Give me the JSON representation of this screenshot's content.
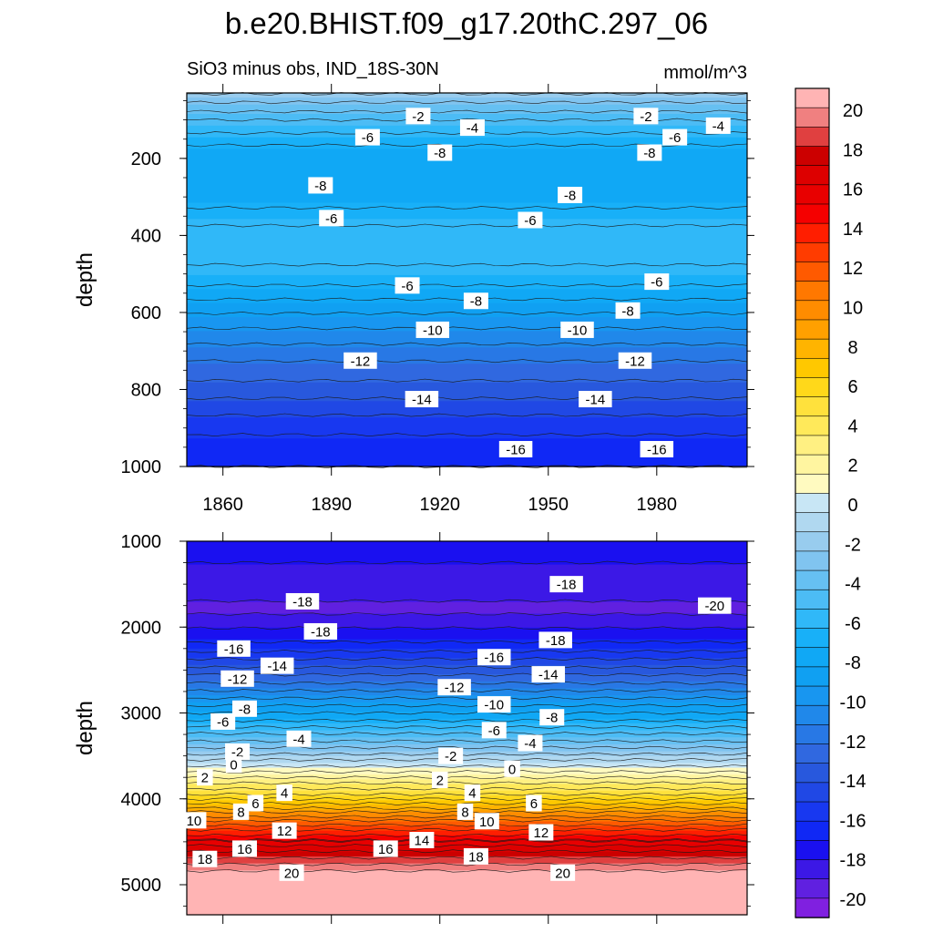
{
  "title": "b.e20.BHIST.f09_g17.20thC.297_06",
  "chart_data": [
    {
      "type": "heatmap",
      "panel": "upper",
      "subtitle_left": "SiO3 minus obs, IND_18S-30N",
      "subtitle_right": "mmol/m^3",
      "ylabel": "depth",
      "xlim": [
        1850,
        2005
      ],
      "ylim": [
        1000,
        30
      ],
      "x_ticks": [
        1860,
        1890,
        1920,
        1950,
        1980
      ],
      "y_ticks": [
        200,
        400,
        600,
        800,
        1000
      ],
      "depth_profile": [
        {
          "depth": 30,
          "value": -2.0
        },
        {
          "depth": 100,
          "value": -5.0
        },
        {
          "depth": 180,
          "value": -7.5
        },
        {
          "depth": 300,
          "value": -7.6
        },
        {
          "depth": 400,
          "value": -5.4
        },
        {
          "depth": 500,
          "value": -6.2
        },
        {
          "depth": 600,
          "value": -9.0
        },
        {
          "depth": 700,
          "value": -11.5
        },
        {
          "depth": 800,
          "value": -13.5
        },
        {
          "depth": 900,
          "value": -15.8
        },
        {
          "depth": 1000,
          "value": -17.0
        }
      ],
      "contour_labels": [
        {
          "x": 1914,
          "depth": 90,
          "text": "-2"
        },
        {
          "x": 1929,
          "depth": 120,
          "text": "-4"
        },
        {
          "x": 1900,
          "depth": 145,
          "text": "-6"
        },
        {
          "x": 1920,
          "depth": 185,
          "text": "-8"
        },
        {
          "x": 1977,
          "depth": 90,
          "text": "-2"
        },
        {
          "x": 1997,
          "depth": 115,
          "text": "-4"
        },
        {
          "x": 1985,
          "depth": 145,
          "text": "-6"
        },
        {
          "x": 1978,
          "depth": 185,
          "text": "-8"
        },
        {
          "x": 1887,
          "depth": 270,
          "text": "-8"
        },
        {
          "x": 1956,
          "depth": 295,
          "text": "-8"
        },
        {
          "x": 1890,
          "depth": 355,
          "text": "-6"
        },
        {
          "x": 1945,
          "depth": 360,
          "text": "-6"
        },
        {
          "x": 1911,
          "depth": 530,
          "text": "-6"
        },
        {
          "x": 1980,
          "depth": 520,
          "text": "-6"
        },
        {
          "x": 1930,
          "depth": 570,
          "text": "-8"
        },
        {
          "x": 1972,
          "depth": 595,
          "text": "-8"
        },
        {
          "x": 1918,
          "depth": 645,
          "text": "-10"
        },
        {
          "x": 1958,
          "depth": 645,
          "text": "-10"
        },
        {
          "x": 1898,
          "depth": 725,
          "text": "-12"
        },
        {
          "x": 1974,
          "depth": 725,
          "text": "-12"
        },
        {
          "x": 1915,
          "depth": 825,
          "text": "-14"
        },
        {
          "x": 1963,
          "depth": 825,
          "text": "-14"
        },
        {
          "x": 1941,
          "depth": 955,
          "text": "-16"
        },
        {
          "x": 1980,
          "depth": 955,
          "text": "-16"
        }
      ]
    },
    {
      "type": "heatmap",
      "panel": "lower",
      "ylabel": "depth",
      "xlim": [
        1850,
        2005
      ],
      "ylim": [
        5350,
        1000
      ],
      "y_ticks": [
        1000,
        2000,
        3000,
        4000,
        5000
      ],
      "depth_profile": [
        {
          "depth": 1000,
          "value": -17.5
        },
        {
          "depth": 1500,
          "value": -18.5
        },
        {
          "depth": 1800,
          "value": -19.3
        },
        {
          "depth": 2200,
          "value": -16.8
        },
        {
          "depth": 2600,
          "value": -12.5
        },
        {
          "depth": 3000,
          "value": -8.0
        },
        {
          "depth": 3400,
          "value": -3.0
        },
        {
          "depth": 3650,
          "value": 0.5
        },
        {
          "depth": 4000,
          "value": 6.0
        },
        {
          "depth": 4300,
          "value": 12.0
        },
        {
          "depth": 4600,
          "value": 17.0
        },
        {
          "depth": 4850,
          "value": 20.2
        },
        {
          "depth": 5350,
          "value": 20.5
        }
      ],
      "contour_labels": [
        {
          "x": 1955,
          "depth": 1500,
          "text": "-18"
        },
        {
          "x": 1996,
          "depth": 1750,
          "text": "-20"
        },
        {
          "x": 1882,
          "depth": 1700,
          "text": "-18"
        },
        {
          "x": 1887,
          "depth": 2050,
          "text": "-18"
        },
        {
          "x": 1952,
          "depth": 2150,
          "text": "-18"
        },
        {
          "x": 1863,
          "depth": 2250,
          "text": "-16"
        },
        {
          "x": 1935,
          "depth": 2350,
          "text": "-16"
        },
        {
          "x": 1875,
          "depth": 2450,
          "text": "-14"
        },
        {
          "x": 1950,
          "depth": 2550,
          "text": "-14"
        },
        {
          "x": 1864,
          "depth": 2600,
          "text": "-12"
        },
        {
          "x": 1924,
          "depth": 2700,
          "text": "-12"
        },
        {
          "x": 1866,
          "depth": 2950,
          "text": "-8"
        },
        {
          "x": 1935,
          "depth": 2900,
          "text": "-10"
        },
        {
          "x": 1951,
          "depth": 3050,
          "text": "-8"
        },
        {
          "x": 1860,
          "depth": 3100,
          "text": "-6"
        },
        {
          "x": 1935,
          "depth": 3200,
          "text": "-6"
        },
        {
          "x": 1881,
          "depth": 3300,
          "text": "-4"
        },
        {
          "x": 1945,
          "depth": 3350,
          "text": "-4"
        },
        {
          "x": 1864,
          "depth": 3450,
          "text": "-2"
        },
        {
          "x": 1923,
          "depth": 3500,
          "text": "-2"
        },
        {
          "x": 1855,
          "depth": 3750,
          "text": "2"
        },
        {
          "x": 1863,
          "depth": 3600,
          "text": "0"
        },
        {
          "x": 1940,
          "depth": 3650,
          "text": "0"
        },
        {
          "x": 1920,
          "depth": 3780,
          "text": "2"
        },
        {
          "x": 1869,
          "depth": 4050,
          "text": "6"
        },
        {
          "x": 1877,
          "depth": 3930,
          "text": "4"
        },
        {
          "x": 1929,
          "depth": 3930,
          "text": "4"
        },
        {
          "x": 1946,
          "depth": 4050,
          "text": "6"
        },
        {
          "x": 1865,
          "depth": 4150,
          "text": "8"
        },
        {
          "x": 1852,
          "depth": 4250,
          "text": "10"
        },
        {
          "x": 1933,
          "depth": 4260,
          "text": "10"
        },
        {
          "x": 1927,
          "depth": 4150,
          "text": "8"
        },
        {
          "x": 1877,
          "depth": 4370,
          "text": "12"
        },
        {
          "x": 1948,
          "depth": 4390,
          "text": "12"
        },
        {
          "x": 1915,
          "depth": 4480,
          "text": "14"
        },
        {
          "x": 1866,
          "depth": 4580,
          "text": "16"
        },
        {
          "x": 1905,
          "depth": 4580,
          "text": "16"
        },
        {
          "x": 1930,
          "depth": 4670,
          "text": "18"
        },
        {
          "x": 1855,
          "depth": 4700,
          "text": "18"
        },
        {
          "x": 1879,
          "depth": 4860,
          "text": "20"
        },
        {
          "x": 1954,
          "depth": 4860,
          "text": "20"
        }
      ]
    }
  ],
  "colorbar": {
    "labels": [
      "20",
      "18",
      "16",
      "14",
      "12",
      "10",
      "8",
      "6",
      "4",
      "2",
      "0",
      "-2",
      "-4",
      "-6",
      "-8",
      "-10",
      "-12",
      "-14",
      "-16",
      "-18",
      "-20"
    ],
    "levels_min": -21,
    "levels_max": 21,
    "colors_top_to_bottom": [
      "#ffb4b4",
      "#f08080",
      "#e04040",
      "#cc0000",
      "#dd0000",
      "#e80000",
      "#f50000",
      "#ff1e00",
      "#ff3c00",
      "#ff5a00",
      "#ff7800",
      "#ff8c00",
      "#ffa000",
      "#ffb400",
      "#ffc800",
      "#ffd81a",
      "#ffe13c",
      "#ffe95a",
      "#fff082",
      "#fff5a0",
      "#fffac0",
      "#c8e6f5",
      "#b0d8f0",
      "#98ccee",
      "#80c4f0",
      "#66c0f2",
      "#4cbcf5",
      "#30b8f8",
      "#18b0f8",
      "#10a8f5",
      "#10a0f2",
      "#1896f0",
      "#2088ea",
      "#2878e5",
      "#3068e0",
      "#2858dd",
      "#2048e5",
      "#1838f0",
      "#1028f5",
      "#1a10f0",
      "#3c18e6",
      "#6020e0",
      "#8020e0"
    ]
  }
}
